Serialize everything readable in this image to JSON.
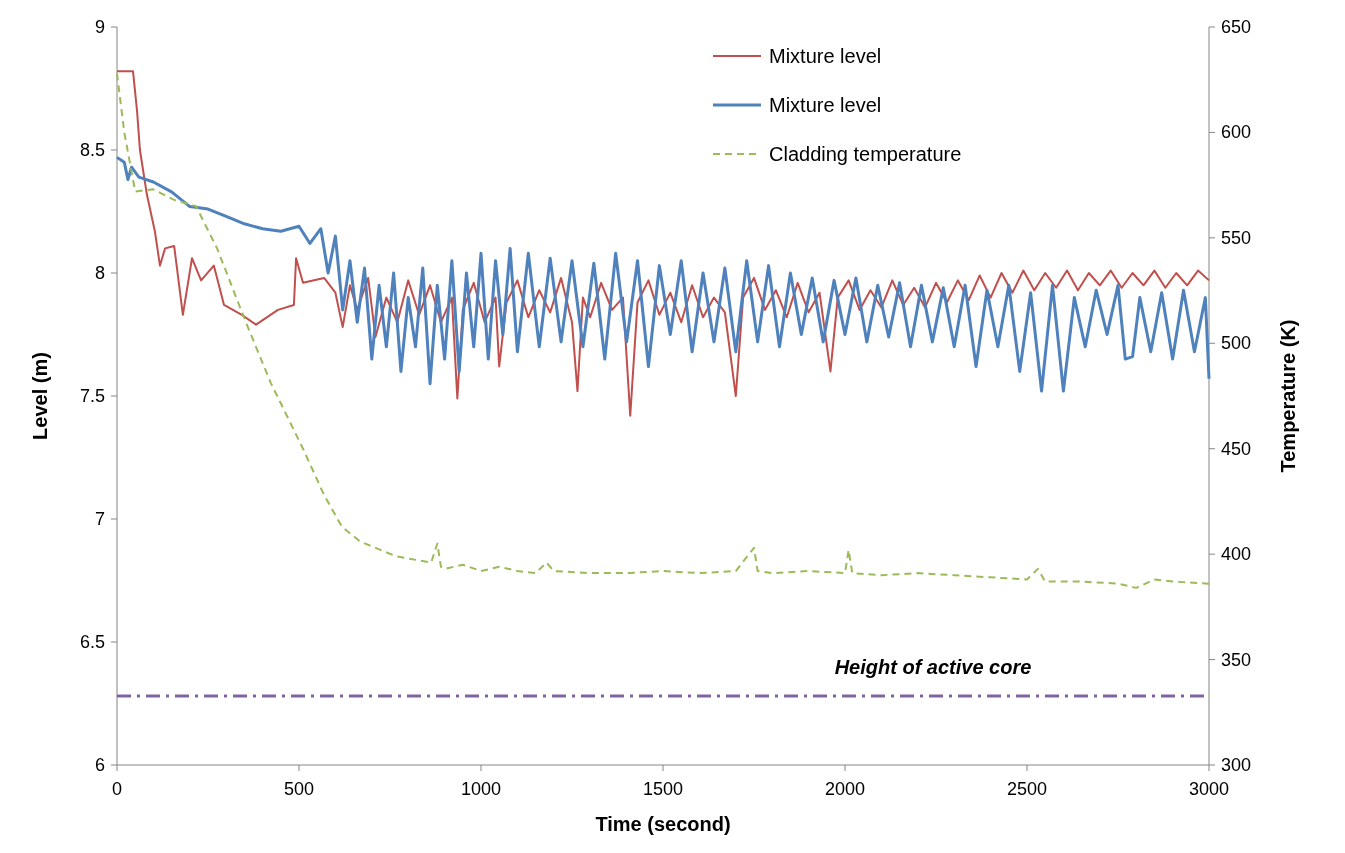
{
  "chart_data": {
    "type": "line",
    "xlabel": "Time (second)",
    "ylabel": "Level (m)",
    "y2label": "Temperature (K)",
    "xlim": [
      0,
      3000
    ],
    "xticks": [
      0,
      500,
      1000,
      1500,
      2000,
      2500,
      3000
    ],
    "ylim": [
      6,
      9
    ],
    "yticks": [
      6,
      6.5,
      7,
      7.5,
      8,
      8.5,
      9
    ],
    "y2lim": [
      300,
      650
    ],
    "y2ticks": [
      300,
      350,
      400,
      450,
      500,
      550,
      600,
      650
    ],
    "grid": false,
    "legend": "top right",
    "ref_lines": [
      {
        "axis": "y",
        "value": 6.28,
        "label": "Height of active core",
        "color": "#8064a2",
        "line_style": "dashed"
      }
    ],
    "series": [
      {
        "name": "Mixture level",
        "color": "#c0504d",
        "line_style": "solid",
        "x": [
          0,
          44,
          55,
          63,
          82,
          104,
          118,
          132,
          157,
          181,
          206,
          231,
          266,
          294,
          343,
          382,
          442,
          486,
          492,
          511,
          569,
          600,
          620,
          640,
          660,
          690,
          710,
          740,
          770,
          800,
          830,
          860,
          890,
          920,
          935,
          950,
          980,
          1010,
          1040,
          1050,
          1070,
          1100,
          1130,
          1160,
          1190,
          1220,
          1250,
          1265,
          1280,
          1300,
          1330,
          1360,
          1390,
          1410,
          1430,
          1460,
          1490,
          1520,
          1550,
          1580,
          1610,
          1640,
          1670,
          1700,
          1720,
          1750,
          1780,
          1810,
          1840,
          1870,
          1900,
          1930,
          1960,
          1980,
          2010,
          2040,
          2070,
          2100,
          2130,
          2160,
          2190,
          2220,
          2250,
          2280,
          2310,
          2340,
          2370,
          2400,
          2430,
          2460,
          2490,
          2520,
          2550,
          2580,
          2610,
          2640,
          2670,
          2700,
          2730,
          2760,
          2790,
          2820,
          2850,
          2880,
          2910,
          2940,
          2970,
          3000
        ],
        "values": [
          8.82,
          8.82,
          8.66,
          8.5,
          8.32,
          8.17,
          8.03,
          8.1,
          8.11,
          7.83,
          8.06,
          7.97,
          8.03,
          7.87,
          7.83,
          7.79,
          7.85,
          7.87,
          8.06,
          7.96,
          7.98,
          7.92,
          7.78,
          7.95,
          7.85,
          7.98,
          7.74,
          7.9,
          7.8,
          7.97,
          7.83,
          7.95,
          7.8,
          7.9,
          7.49,
          7.85,
          7.96,
          7.8,
          7.9,
          7.62,
          7.88,
          7.97,
          7.82,
          7.93,
          7.84,
          7.98,
          7.8,
          7.52,
          7.9,
          7.82,
          7.96,
          7.85,
          7.9,
          7.42,
          7.88,
          7.97,
          7.83,
          7.92,
          7.8,
          7.95,
          7.82,
          7.9,
          7.84,
          7.5,
          7.9,
          7.98,
          7.85,
          7.93,
          7.82,
          7.96,
          7.84,
          7.92,
          7.6,
          7.9,
          7.97,
          7.85,
          7.93,
          7.86,
          7.97,
          7.87,
          7.94,
          7.86,
          7.96,
          7.88,
          7.97,
          7.89,
          7.99,
          7.9,
          8.0,
          7.92,
          8.01,
          7.93,
          8.0,
          7.94,
          8.01,
          7.93,
          8.0,
          7.95,
          8.01,
          7.94,
          8.0,
          7.95,
          8.01,
          7.94,
          8.0,
          7.95,
          8.01,
          7.97
        ]
      },
      {
        "name": "Mixture level",
        "color": "#4f81bd",
        "line_style": "solid",
        "x": [
          0,
          20,
          30,
          40,
          60,
          100,
          150,
          200,
          250,
          300,
          350,
          400,
          450,
          500,
          530,
          560,
          580,
          600,
          620,
          640,
          660,
          680,
          700,
          720,
          740,
          760,
          780,
          800,
          820,
          840,
          860,
          880,
          900,
          920,
          940,
          960,
          980,
          1000,
          1020,
          1040,
          1060,
          1080,
          1100,
          1130,
          1160,
          1190,
          1220,
          1250,
          1280,
          1310,
          1340,
          1370,
          1400,
          1430,
          1460,
          1490,
          1520,
          1550,
          1580,
          1610,
          1640,
          1670,
          1700,
          1730,
          1760,
          1790,
          1820,
          1850,
          1880,
          1910,
          1940,
          1970,
          2000,
          2030,
          2060,
          2090,
          2120,
          2150,
          2180,
          2210,
          2240,
          2270,
          2300,
          2330,
          2360,
          2390,
          2420,
          2450,
          2480,
          2510,
          2540,
          2570,
          2600,
          2630,
          2660,
          2690,
          2720,
          2750,
          2770,
          2790,
          2810,
          2840,
          2870,
          2900,
          2930,
          2960,
          2990,
          3000
        ],
        "values": [
          8.47,
          8.45,
          8.38,
          8.43,
          8.39,
          8.37,
          8.33,
          8.27,
          8.26,
          8.23,
          8.2,
          8.18,
          8.17,
          8.19,
          8.12,
          8.18,
          8.0,
          8.15,
          7.85,
          8.05,
          7.8,
          8.02,
          7.65,
          7.95,
          7.7,
          8.0,
          7.6,
          7.9,
          7.7,
          8.02,
          7.55,
          7.95,
          7.65,
          8.05,
          7.6,
          8.0,
          7.7,
          8.08,
          7.65,
          8.05,
          7.75,
          8.1,
          7.68,
          8.08,
          7.7,
          8.06,
          7.72,
          8.05,
          7.7,
          8.04,
          7.65,
          8.08,
          7.72,
          8.05,
          7.62,
          8.03,
          7.75,
          8.05,
          7.68,
          8.0,
          7.72,
          8.02,
          7.68,
          8.05,
          7.72,
          8.03,
          7.7,
          8.0,
          7.75,
          7.98,
          7.72,
          7.97,
          7.75,
          7.98,
          7.72,
          7.95,
          7.74,
          7.96,
          7.7,
          7.95,
          7.72,
          7.94,
          7.7,
          7.95,
          7.62,
          7.93,
          7.7,
          7.95,
          7.6,
          7.92,
          7.52,
          7.95,
          7.52,
          7.9,
          7.7,
          7.93,
          7.75,
          7.95,
          7.65,
          7.66,
          7.9,
          7.68,
          7.92,
          7.65,
          7.93,
          7.68,
          7.9,
          7.57
        ]
      },
      {
        "name": "Cladding temperature",
        "color": "#9bbb59",
        "line_style": "dashed",
        "axis": "y2",
        "x": [
          0,
          20,
          50,
          100,
          157,
          217,
          275,
          354,
          423,
          511,
          569,
          618,
          668,
          766,
          863,
          880,
          890,
          900,
          950,
          1000,
          1050,
          1100,
          1150,
          1180,
          1200,
          1300,
          1400,
          1500,
          1600,
          1700,
          1750,
          1760,
          1800,
          1900,
          2000,
          2010,
          2020,
          2100,
          2200,
          2300,
          2400,
          2500,
          2530,
          2550,
          2650,
          2750,
          2800,
          2850,
          2900,
          3000
        ],
        "values": [
          628,
          600,
          572,
          573,
          568,
          565,
          545,
          510,
          481,
          450,
          428,
          413,
          406,
          399,
          396,
          405,
          394,
          393,
          395,
          392,
          394,
          392,
          391,
          396,
          392,
          391,
          391,
          392,
          391,
          392,
          403,
          392,
          391,
          392,
          391,
          402,
          391,
          390,
          391,
          390,
          389,
          388,
          393,
          387,
          387,
          386,
          384,
          388,
          387,
          386
        ]
      }
    ]
  }
}
